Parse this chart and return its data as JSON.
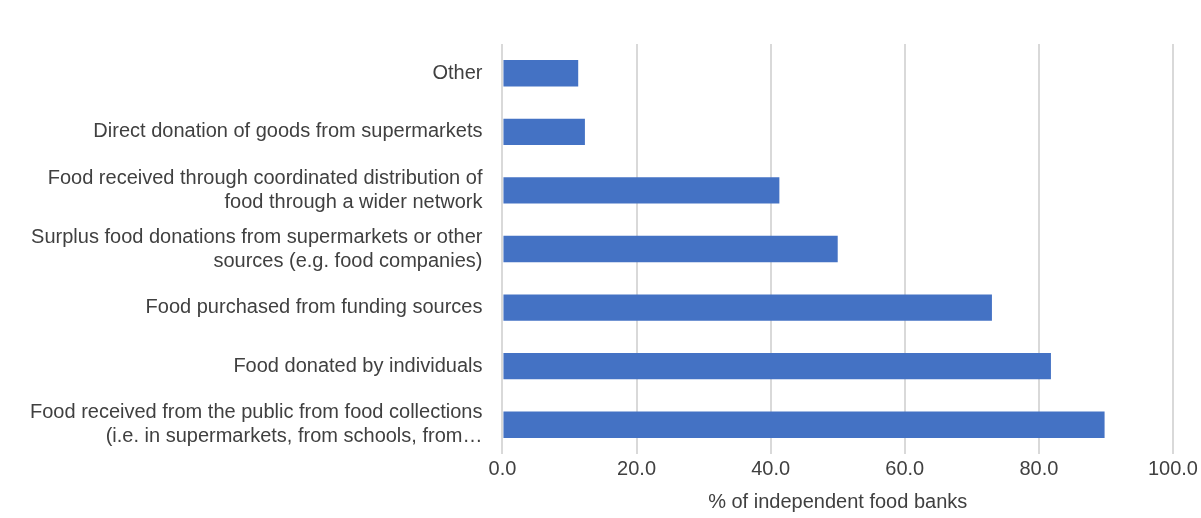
{
  "chart_data": {
    "type": "bar",
    "orientation": "horizontal",
    "xlabel": "% of independent food banks",
    "categories": [
      "Other",
      "Direct donation of goods from supermarkets",
      "Food received through coordinated distribution of food through a wider network",
      "Surplus food donations from supermarkets or other sources (e.g. food companies)",
      "Food purchased from funding sources",
      "Food donated by individuals",
      "Food received from the public from food collections (i.e. in supermarkets, from schools, from…"
    ],
    "values": [
      11.3,
      12.3,
      41.3,
      50.0,
      73.0,
      81.8,
      89.8
    ],
    "color": "#4472c4",
    "xlim": [
      0,
      100
    ],
    "xticks": [
      {
        "value": 0,
        "label": "0.0"
      },
      {
        "value": 20,
        "label": "20.0"
      },
      {
        "value": 40,
        "label": "40.0"
      },
      {
        "value": 60,
        "label": "60.0"
      },
      {
        "value": 80,
        "label": "80.0"
      },
      {
        "value": 100,
        "label": "100.0"
      }
    ],
    "grid": "x",
    "legend": false
  }
}
